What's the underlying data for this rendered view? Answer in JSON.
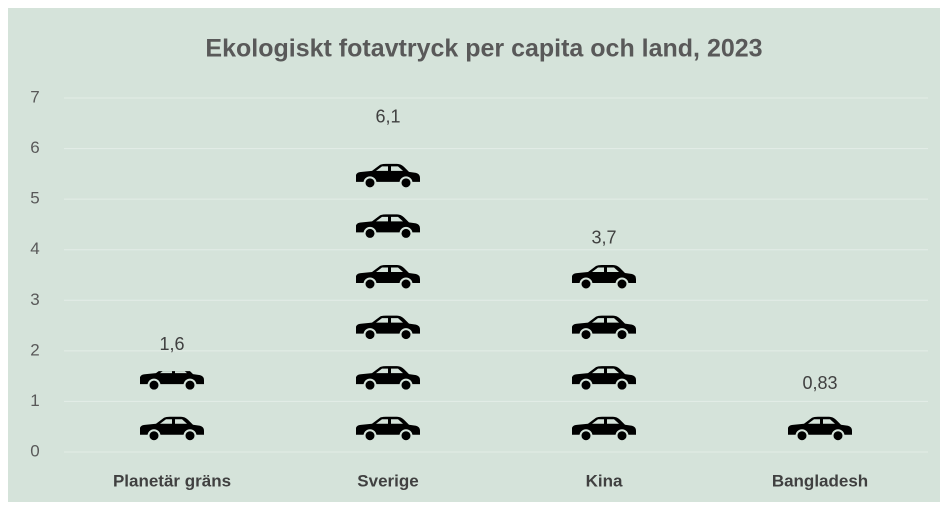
{
  "chart_data": {
    "type": "pictograph",
    "title": "Ekologiskt fotavtryck per capita och land, 2023",
    "categories": [
      "Planetär gräns",
      "Sverige",
      "Kina",
      "Bangladesh"
    ],
    "values": [
      1.6,
      6.1,
      3.7,
      0.83
    ],
    "value_labels": [
      "1,6",
      "6,1",
      "3,7",
      "0,83"
    ],
    "color": "#000000",
    "background": "#d5e3da",
    "ylim": [
      0,
      7
    ],
    "yticks": [
      0,
      1,
      2,
      3,
      4,
      5,
      6,
      7
    ],
    "grid": true
  }
}
